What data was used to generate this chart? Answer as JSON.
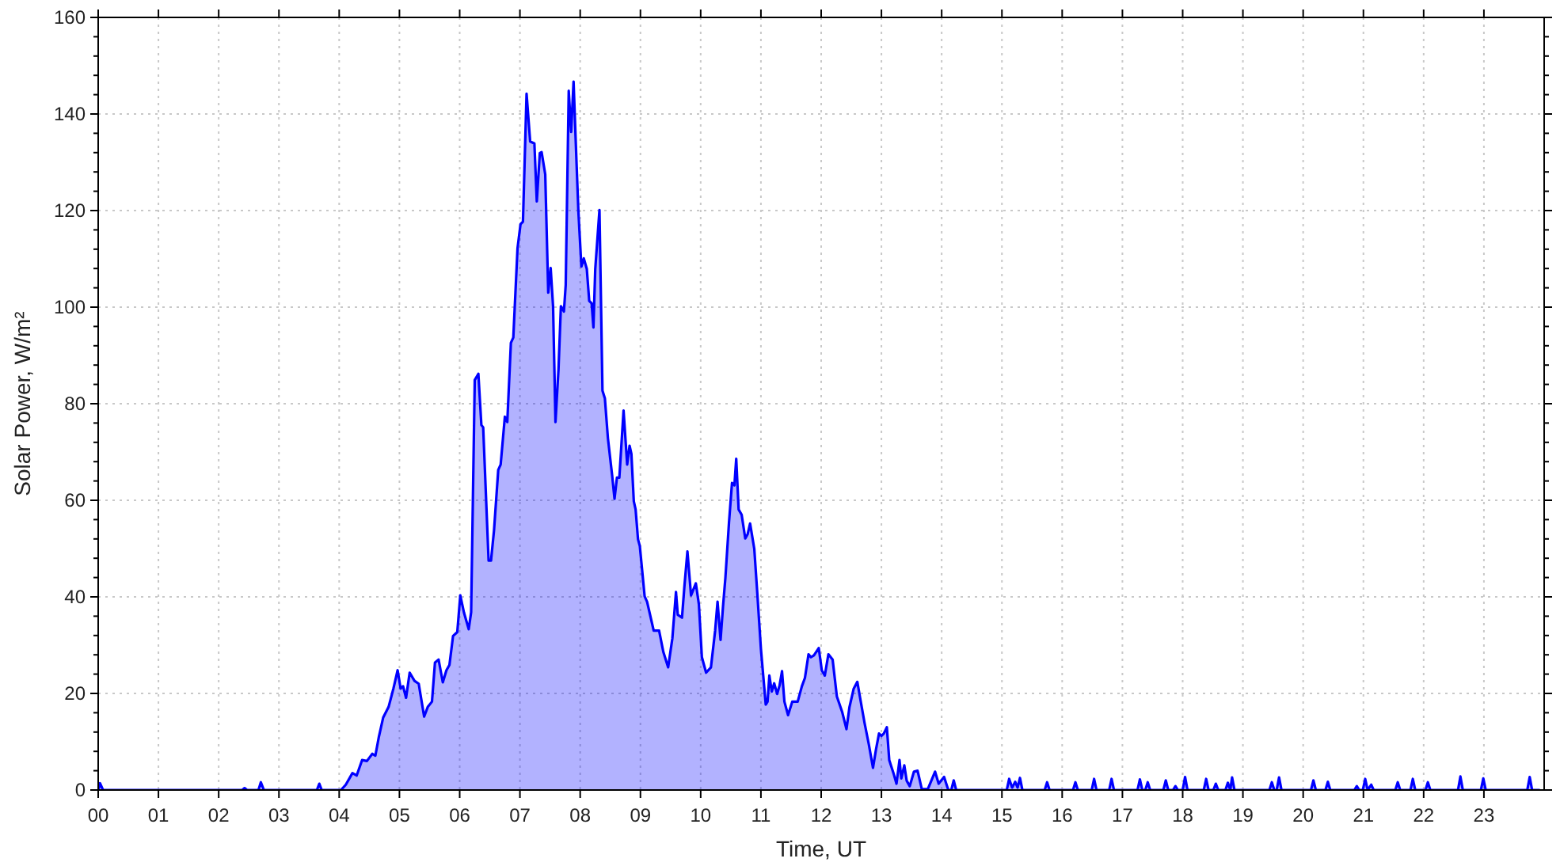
{
  "chart_data": {
    "type": "area",
    "xlabel": "Time, UT",
    "ylabel": "Solar Power, W/m²",
    "color": "#0000ff",
    "grid": true,
    "xlim": [
      0,
      24
    ],
    "xticks": [
      {
        "value": 0,
        "label": "00"
      },
      {
        "value": 1,
        "label": "01"
      },
      {
        "value": 2,
        "label": "02"
      },
      {
        "value": 3,
        "label": "03"
      },
      {
        "value": 4,
        "label": "04"
      },
      {
        "value": 5,
        "label": "05"
      },
      {
        "value": 6,
        "label": "06"
      },
      {
        "value": 7,
        "label": "07"
      },
      {
        "value": 8,
        "label": "08"
      },
      {
        "value": 9,
        "label": "09"
      },
      {
        "value": 10,
        "label": "10"
      },
      {
        "value": 11,
        "label": "11"
      },
      {
        "value": 12,
        "label": "12"
      },
      {
        "value": 13,
        "label": "13"
      },
      {
        "value": 14,
        "label": "14"
      },
      {
        "value": 15,
        "label": "15"
      },
      {
        "value": 16,
        "label": "16"
      },
      {
        "value": 17,
        "label": "17"
      },
      {
        "value": 18,
        "label": "18"
      },
      {
        "value": 19,
        "label": "19"
      },
      {
        "value": 20,
        "label": "20"
      },
      {
        "value": 21,
        "label": "21"
      },
      {
        "value": 22,
        "label": "22"
      },
      {
        "value": 23,
        "label": "23"
      }
    ],
    "ylim": [
      0,
      160
    ],
    "yticks": [
      0,
      {
        "value": 4,
        "label": null
      },
      {
        "value": 8,
        "label": null
      },
      {
        "value": 12,
        "label": null
      },
      {
        "value": 16,
        "label": null
      },
      20,
      {
        "value": 24,
        "label": null
      },
      {
        "value": 28,
        "label": null
      },
      {
        "value": 32,
        "label": null
      },
      {
        "value": 36,
        "label": null
      },
      40,
      {
        "value": 44,
        "label": null
      },
      {
        "value": 48,
        "label": null
      },
      {
        "value": 52,
        "label": null
      },
      {
        "value": 56,
        "label": null
      },
      60,
      {
        "value": 64,
        "label": null
      },
      {
        "value": 68,
        "label": null
      },
      {
        "value": 72,
        "label": null
      },
      {
        "value": 76,
        "label": null
      },
      80,
      {
        "value": 84,
        "label": null
      },
      {
        "value": 88,
        "label": null
      },
      {
        "value": 92,
        "label": null
      },
      {
        "value": 96,
        "label": null
      },
      100,
      {
        "value": 104,
        "label": null
      },
      {
        "value": 108,
        "label": null
      },
      {
        "value": 112,
        "label": null
      },
      {
        "value": 116,
        "label": null
      },
      120,
      {
        "value": 124,
        "label": null
      },
      {
        "value": 128,
        "label": null
      },
      {
        "value": 132,
        "label": null
      },
      {
        "value": 136,
        "label": null
      },
      140,
      {
        "value": 144,
        "label": null
      },
      {
        "value": 148,
        "label": null
      },
      {
        "value": 152,
        "label": null
      },
      {
        "value": 156,
        "label": null
      },
      160
    ],
    "x": [
      0,
      0.03,
      0.08,
      2.39,
      2.43,
      2.47,
      2.66,
      2.7,
      2.75,
      3.63,
      3.67,
      3.71,
      4.03,
      4.11,
      4.22,
      4.29,
      4.38,
      4.46,
      4.55,
      4.6,
      4.66,
      4.73,
      4.82,
      4.9,
      4.97,
      5.02,
      5.06,
      5.11,
      5.17,
      5.25,
      5.32,
      5.41,
      5.47,
      5.54,
      5.59,
      5.65,
      5.72,
      5.78,
      5.83,
      5.89,
      5.96,
      6.01,
      6.07,
      6.15,
      6.19,
      6.25,
      6.31,
      6.36,
      6.39,
      6.48,
      6.52,
      6.57,
      6.64,
      6.68,
      6.75,
      6.79,
      6.85,
      6.89,
      6.96,
      7.01,
      7.05,
      7.11,
      7.17,
      7.24,
      7.28,
      7.33,
      7.36,
      7.42,
      7.47,
      7.51,
      7.55,
      7.59,
      7.64,
      7.68,
      7.73,
      7.76,
      7.81,
      7.85,
      7.89,
      7.94,
      7.97,
      8.02,
      8.06,
      8.11,
      8.15,
      8.19,
      8.22,
      8.25,
      8.32,
      8.37,
      8.41,
      8.46,
      8.53,
      8.57,
      8.61,
      8.65,
      8.72,
      8.78,
      8.82,
      8.85,
      8.89,
      8.92,
      8.96,
      8.99,
      9.07,
      9.11,
      9.16,
      9.22,
      9.31,
      9.38,
      9.46,
      9.53,
      9.59,
      9.62,
      9.69,
      9.73,
      9.78,
      9.84,
      9.92,
      9.97,
      10.02,
      10.09,
      10.17,
      10.24,
      10.28,
      10.33,
      10.37,
      10.41,
      10.47,
      10.52,
      10.56,
      10.59,
      10.63,
      10.68,
      10.74,
      10.78,
      10.82,
      10.89,
      10.94,
      11,
      11.08,
      11.11,
      11.14,
      11.18,
      11.22,
      11.27,
      11.31,
      11.35,
      11.39,
      11.45,
      11.52,
      11.61,
      11.68,
      11.73,
      11.79,
      11.83,
      11.88,
      11.96,
      12.01,
      12.06,
      12.12,
      12.19,
      12.26,
      12.35,
      12.42,
      12.47,
      12.54,
      12.6,
      12.65,
      12.72,
      12.79,
      12.86,
      12.91,
      12.96,
      13,
      13.04,
      13.09,
      13.13,
      13.2,
      13.25,
      13.3,
      13.33,
      13.38,
      13.42,
      13.47,
      13.54,
      13.6,
      13.67,
      13.77,
      13.89,
      13.95,
      14.04,
      14.11,
      14.16,
      14.2,
      14.24,
      15.08,
      15.12,
      15.17,
      15.22,
      15.26,
      15.3,
      15.34,
      15.71,
      15.75,
      15.79,
      16.18,
      16.22,
      16.26,
      16.49,
      16.53,
      16.57,
      16.78,
      16.82,
      16.86,
      17.25,
      17.29,
      17.33,
      17.38,
      17.42,
      17.46,
      17.68,
      17.72,
      17.76,
      17.84,
      17.88,
      17.92,
      18,
      18.04,
      18.08,
      18.35,
      18.39,
      18.43,
      18.51,
      18.55,
      18.59,
      18.71,
      18.75,
      18.79,
      18.82,
      18.86,
      19.44,
      19.48,
      19.52,
      19.56,
      19.6,
      19.64,
      20.13,
      20.17,
      20.21,
      20.37,
      20.41,
      20.45,
      20.85,
      20.89,
      20.93,
      20.99,
      21.03,
      21.07,
      21.13,
      21.17,
      21.53,
      21.57,
      21.61,
      21.78,
      21.82,
      21.86,
      22.03,
      22.07,
      22.11,
      22.57,
      22.61,
      22.65,
      22.95,
      22.99,
      23.03,
      23.72,
      23.76,
      23.8,
      23.92
    ],
    "values": [
      0,
      1.4,
      0,
      0,
      0.4,
      0,
      0,
      1.6,
      0,
      0,
      1.3,
      0,
      0,
      1.1,
      3.5,
      3,
      6.2,
      6,
      7.5,
      7.1,
      11.1,
      15,
      17.2,
      21,
      24.8,
      21,
      21.5,
      19.1,
      24.3,
      22.6,
      22,
      15.2,
      17.2,
      18.3,
      26.4,
      27,
      22.3,
      24.8,
      25.9,
      31.9,
      32.7,
      40.3,
      36.8,
      33.3,
      36.8,
      84.9,
      86.2,
      75.6,
      75.1,
      47.5,
      47.5,
      53.8,
      66.3,
      67.4,
      77.3,
      76.2,
      92.6,
      93.7,
      112.2,
      117.2,
      117.7,
      144.2,
      134.3,
      133.9,
      121.9,
      131.9,
      132.1,
      127.5,
      103,
      108.1,
      100.2,
      76.2,
      87.1,
      100.2,
      99.1,
      104.6,
      144.8,
      136.3,
      146.7,
      129.7,
      119.9,
      108.4,
      110.1,
      107.9,
      101.3,
      100.8,
      95.8,
      107.9,
      120.1,
      82.7,
      81.1,
      72.9,
      65.2,
      60.3,
      64.7,
      64.7,
      78.6,
      67.4,
      71.3,
      69.6,
      59.8,
      58.1,
      51.9,
      50.5,
      40.1,
      39,
      36.3,
      33,
      33,
      28.6,
      25.4,
      31.4,
      41,
      36.3,
      35.7,
      42.2,
      49.4,
      40.3,
      42.8,
      38.5,
      27.5,
      24.3,
      25.4,
      33,
      39,
      31.1,
      37.9,
      43.9,
      55.4,
      63.6,
      63.1,
      68.6,
      58.1,
      57,
      52.1,
      53,
      55.2,
      49.9,
      40.7,
      29.2,
      17.7,
      18.3,
      23.7,
      20.4,
      22.1,
      19.9,
      21.7,
      24.6,
      18.3,
      15.5,
      18.3,
      18.3,
      21.5,
      23.2,
      28.1,
      27.5,
      27.9,
      29.4,
      24.8,
      23.7,
      28.1,
      27,
      19.4,
      16.1,
      12.6,
      17.2,
      21,
      22.4,
      18.8,
      13.9,
      9.5,
      4.6,
      8.4,
      11.7,
      11.2,
      11.7,
      13,
      6.2,
      3.5,
      1.3,
      6.2,
      2.4,
      5.1,
      1.9,
      0.8,
      3.8,
      4,
      0.2,
      0.2,
      3.8,
      1.3,
      2.7,
      0,
      0,
      2,
      0,
      0,
      2.3,
      0.5,
      1.7,
      0.5,
      2.5,
      0,
      0,
      1.6,
      0,
      0,
      1.6,
      0,
      0,
      2.3,
      0,
      0,
      2.3,
      0,
      0,
      2.2,
      0,
      0,
      1.6,
      0,
      0,
      2,
      0,
      0,
      0.8,
      0,
      0,
      2.7,
      0,
      0,
      2.3,
      0,
      0,
      1.3,
      0,
      0,
      1.5,
      0,
      2.6,
      0,
      0,
      1.6,
      0,
      0,
      2.6,
      0,
      0,
      2,
      0,
      0,
      1.7,
      0,
      0,
      0.8,
      0,
      0,
      2.3,
      0,
      1.1,
      0,
      0,
      1.6,
      0,
      0,
      2.3,
      0,
      0,
      1.6,
      0,
      0,
      2.8,
      0,
      0,
      2.4,
      0,
      0,
      2.7,
      0,
      0
    ]
  }
}
